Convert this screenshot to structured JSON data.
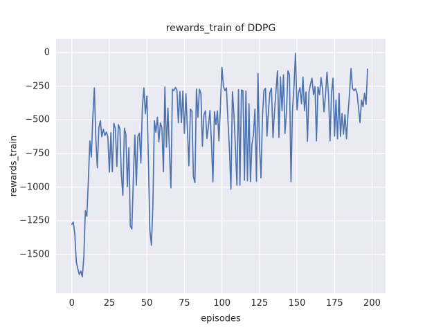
{
  "chart_data": {
    "type": "line",
    "title": "rewards_train of DDPG",
    "xlabel": "episodes",
    "ylabel": "rewards_train",
    "x_ticks": [
      0,
      25,
      50,
      75,
      100,
      125,
      150,
      175,
      200
    ],
    "y_ticks": [
      0,
      -250,
      -500,
      -750,
      -1000,
      -1250,
      -1500
    ],
    "xlim": [
      -10.5,
      209
    ],
    "ylim": [
      -1787,
      103
    ],
    "grid": true,
    "legend_position": "none",
    "style": {
      "figure_bg": "#ffffff",
      "axes_bg": "#eaeaf2",
      "grid_color": "#ffffff",
      "text_color": "#262626",
      "line_color": "#4c72b0"
    },
    "series": [
      {
        "name": "rewards_train",
        "x_start": 0,
        "x_step": 1,
        "values": [
          -1275,
          -1258,
          -1350,
          -1555,
          -1605,
          -1648,
          -1622,
          -1665,
          -1520,
          -1175,
          -1215,
          -955,
          -655,
          -775,
          -480,
          -262,
          -645,
          -855,
          -560,
          -505,
          -625,
          -570,
          -615,
          -590,
          -625,
          -888,
          -595,
          -885,
          -525,
          -565,
          -845,
          -535,
          -568,
          -905,
          -1060,
          -562,
          -605,
          -995,
          -705,
          -1288,
          -1310,
          -930,
          -612,
          -985,
          -622,
          -598,
          -820,
          -400,
          -262,
          -455,
          -322,
          -800,
          -1320,
          -1430,
          -1130,
          -505,
          -592,
          -480,
          -662,
          -522,
          -558,
          -885,
          -255,
          -702,
          -412,
          -722,
          -1005,
          -272,
          -282,
          -258,
          -278,
          -522,
          -288,
          -520,
          -285,
          -600,
          -305,
          -560,
          -840,
          -420,
          -435,
          -920,
          -965,
          -270,
          -480,
          -272,
          -305,
          -695,
          -462,
          -432,
          -638,
          -545,
          -430,
          -660,
          -960,
          -438,
          -535,
          -432,
          -655,
          -390,
          -110,
          -252,
          -282,
          -262,
          -500,
          -725,
          -1015,
          -290,
          -462,
          -705,
          -985,
          -275,
          -985,
          -278,
          -282,
          -948,
          -285,
          -952,
          -380,
          -958,
          -680,
          -610,
          -420,
          -955,
          -155,
          -680,
          -930,
          -470,
          -282,
          -265,
          -620,
          -425,
          -295,
          -265,
          -632,
          -445,
          -285,
          -135,
          -630,
          -180,
          -432,
          -165,
          -600,
          -440,
          -135,
          -165,
          -958,
          -432,
          -252,
          -5,
          -425,
          -302,
          -260,
          -380,
          -182,
          -430,
          -292,
          -658,
          -292,
          -235,
          -190,
          -312,
          -252,
          -655,
          -255,
          -312,
          -185,
          -268,
          -440,
          -312,
          -145,
          -312,
          -655,
          -302,
          -190,
          -620,
          -352,
          -640,
          -302,
          -622,
          -452,
          -605,
          -462,
          -640,
          -452,
          -302,
          -118,
          -268,
          -282,
          -268,
          -302,
          -410,
          -520,
          -352,
          -402,
          -302,
          -385,
          -122
        ]
      }
    ]
  }
}
